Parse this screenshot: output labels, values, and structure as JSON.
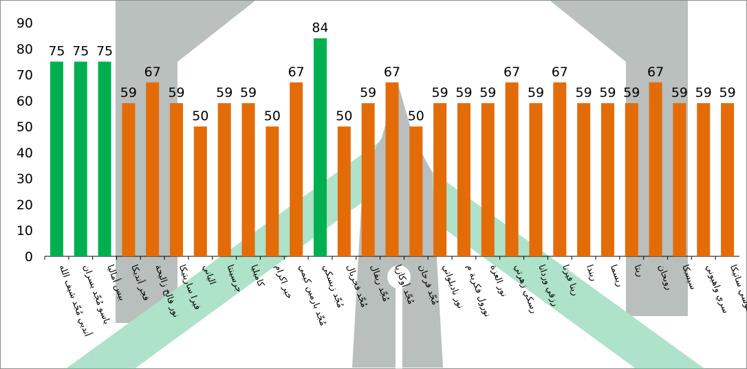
{
  "chart_data": {
    "type": "bar",
    "title": "",
    "xlabel": "",
    "ylabel": "",
    "ylim": [
      0,
      90
    ],
    "yticks": [
      0,
      10,
      20,
      30,
      40,
      50,
      60,
      70,
      80,
      90
    ],
    "grid": false,
    "legend": "none",
    "categories": [
      "أنديي مُجّد شيف الله",
      "باسو مُجّد يسران",
      "بيس أماليا",
      "فجر أنديكا",
      "نور فالح زاليحة",
      "فيرا ساريتيكا",
      "الياني",
      "جرسينتا",
      "كاميليا",
      "خير اكرام",
      "مُجّد بارمين كيمي",
      "مُجّد زيسكي",
      "مُجّد فجريال",
      "مُجّد ريفال",
      "مُجّد أوكازيا",
      "مُجّد فرحان",
      "نور ناديلواتي",
      "نورول فكرية م",
      "نور العزة",
      "رسكي زهرتي",
      "رزقي وردانا",
      "رينا فيرنا",
      "ريندا",
      "ريسما",
      "ريتا",
      "روبحان",
      "سيسكا",
      "سري واهيوني",
      "سوسي ساتيكا"
    ],
    "values": [
      75,
      75,
      75,
      59,
      67,
      59,
      50,
      59,
      59,
      50,
      67,
      84,
      50,
      59,
      67,
      50,
      59,
      59,
      59,
      67,
      59,
      67,
      59,
      59,
      59,
      67,
      59,
      59,
      59
    ],
    "bar_colors": [
      "#00b050",
      "#00b050",
      "#00b050",
      "#e36c09",
      "#e36c09",
      "#e36c09",
      "#e36c09",
      "#e36c09",
      "#e36c09",
      "#e36c09",
      "#e36c09",
      "#00b050",
      "#e36c09",
      "#e36c09",
      "#e36c09",
      "#e36c09",
      "#e36c09",
      "#e36c09",
      "#e36c09",
      "#e36c09",
      "#e36c09",
      "#e36c09",
      "#e36c09",
      "#e36c09",
      "#e36c09",
      "#e36c09",
      "#e36c09",
      "#e36c09",
      "#e36c09"
    ],
    "watermark": "university-logo"
  },
  "colors": {
    "pass": "#00b050",
    "fail": "#e36c09",
    "watermark_gray": "#8f9a95",
    "watermark_green": "#6ccb9e",
    "axis": "#000000",
    "border": "#8c8c8c"
  }
}
